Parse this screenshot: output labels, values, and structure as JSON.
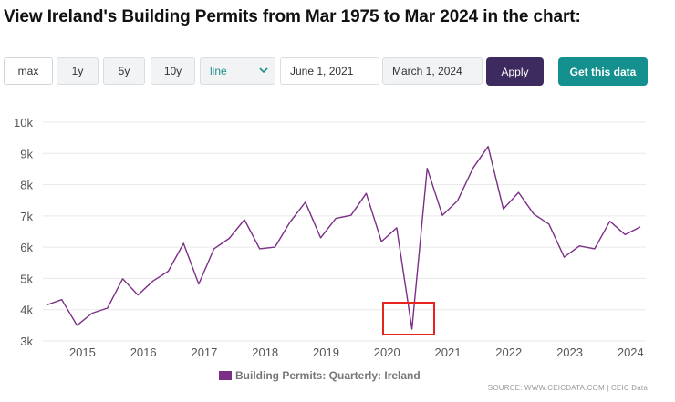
{
  "page": {
    "title": "View Ireland's Building Permits from Mar 1975 to Mar 2024 in the chart:"
  },
  "controls": {
    "range_buttons": [
      "max",
      "1y",
      "5y",
      "10y"
    ],
    "chart_type": "line",
    "start_date": "June 1, 2021",
    "end_date": "March 1, 2024",
    "apply_label": "Apply",
    "get_data_label": "Get this data"
  },
  "source_text": "SOURCE: WWW.CEICDATA.COM | CEIC Data",
  "colors": {
    "line": "#7b2f86",
    "apply_bg": "#3d2a5e",
    "get_data_bg": "#14918e",
    "highlight": "#e8221c"
  },
  "chart_data": {
    "type": "line",
    "title": "",
    "xlabel": "",
    "ylabel": "",
    "ylim": [
      3000,
      10000
    ],
    "yticks": [
      3000,
      4000,
      5000,
      6000,
      7000,
      8000,
      9000,
      10000
    ],
    "ytick_labels": [
      "3k",
      "4k",
      "5k",
      "6k",
      "7k",
      "8k",
      "9k",
      "10k"
    ],
    "xlim": [
      2014.35,
      2024.25
    ],
    "xticks": [
      2015,
      2016,
      2017,
      2018,
      2019,
      2020,
      2021,
      2022,
      2023,
      2024
    ],
    "xtick_labels": [
      "2015",
      "2016",
      "2017",
      "2018",
      "2019",
      "2020",
      "2021",
      "2022",
      "2023",
      "2024"
    ],
    "legend": [
      "Building Permits: Quarterly: Ireland"
    ],
    "series": [
      {
        "name": "Building Permits: Quarterly: Ireland",
        "x": [
          2014.41,
          2014.66,
          2014.91,
          2015.16,
          2015.41,
          2015.66,
          2015.91,
          2016.16,
          2016.41,
          2016.66,
          2016.91,
          2017.16,
          2017.41,
          2017.66,
          2017.91,
          2018.16,
          2018.41,
          2018.66,
          2018.91,
          2019.16,
          2019.41,
          2019.66,
          2019.91,
          2020.16,
          2020.41,
          2020.66,
          2020.91,
          2021.16,
          2021.41,
          2021.66,
          2021.91,
          2022.16,
          2022.41,
          2022.66,
          2022.91,
          2023.16,
          2023.41,
          2023.66,
          2023.91,
          2024.16
        ],
        "values": [
          4150,
          4320,
          3500,
          3890,
          4050,
          4990,
          4470,
          4920,
          5230,
          6120,
          4820,
          5950,
          6280,
          6880,
          5950,
          6000,
          6810,
          7440,
          6300,
          6920,
          7020,
          7720,
          6180,
          6620,
          3380,
          8520,
          7020,
          7490,
          8520,
          9220,
          7220,
          7750,
          7060,
          6740,
          5680,
          6040,
          5950,
          6830,
          6400,
          6650
        ]
      }
    ],
    "annotation": {
      "type": "rectangle",
      "x_range": [
        2020.0,
        2020.86
      ],
      "y_range": [
        3160,
        4280
      ]
    }
  }
}
